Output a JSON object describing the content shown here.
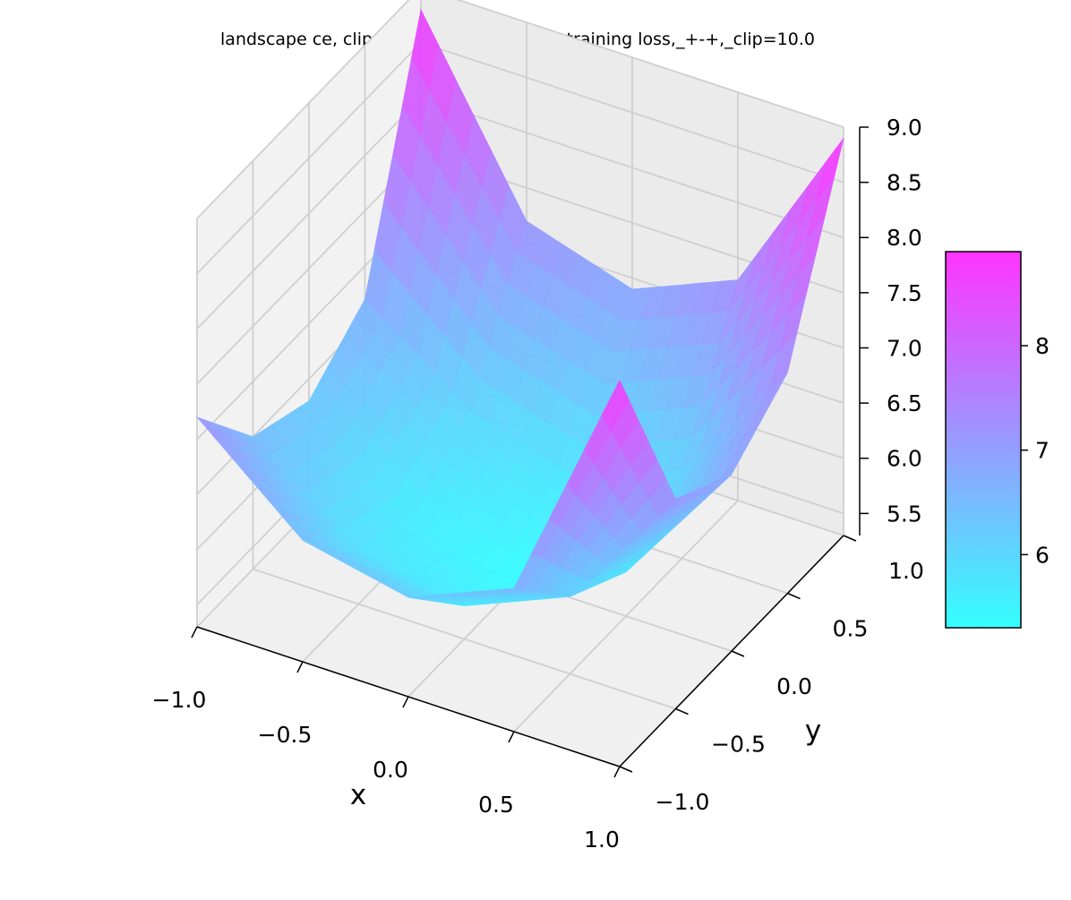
{
  "chart_data": {
    "type": "surface",
    "title": "landscape ce, clip=10.0 data_info=125, training loss,_+-+,_clip=10.0",
    "xlabel": "x",
    "ylabel": "y",
    "xlim": [
      -1.0,
      1.0
    ],
    "ylim": [
      -1.0,
      1.0
    ],
    "zlim": [
      5.3,
      9.0
    ],
    "x_ticks": [
      "−1.0",
      "−0.5",
      "0.0",
      "0.5",
      "1.0"
    ],
    "y_ticks": [
      "−1.0",
      "−0.5",
      "0.0",
      "0.5",
      "1.0"
    ],
    "z_ticks": [
      "5.5",
      "6.0",
      "6.5",
      "7.0",
      "7.5",
      "8.0",
      "8.5",
      "9.0"
    ],
    "colormap": "cool",
    "colormap_low": "#33ffff",
    "colormap_high": "#ff33ff",
    "colorbar": {
      "ticks": [
        "6",
        "7",
        "8"
      ],
      "range": [
        5.3,
        8.9
      ]
    },
    "surface": {
      "description_of_values": "bowl-shaped surface, minimum near center",
      "z_at_center": 5.3,
      "z_at_corner_x-1_y-1": 7.2,
      "z_at_corner_x1_y-1": 8.8,
      "z_at_corner_x-1_y1": 8.8,
      "z_at_corner_x1_y1": 8.9,
      "sample_grid_x": [
        -1.0,
        -0.5,
        0.0,
        0.5,
        1.0
      ],
      "sample_grid_y": [
        -1.0,
        -0.5,
        0.0,
        0.5,
        1.0
      ],
      "sample_z": [
        [
          7.2,
          6.4,
          6.2,
          6.6,
          8.8
        ],
        [
          6.5,
          5.8,
          5.6,
          6.0,
          7.2
        ],
        [
          6.3,
          5.6,
          5.3,
          5.7,
          6.9
        ],
        [
          6.7,
          6.0,
          5.7,
          6.1,
          7.3
        ],
        [
          8.8,
          7.2,
          6.9,
          7.3,
          8.9
        ]
      ]
    },
    "grid": true
  }
}
